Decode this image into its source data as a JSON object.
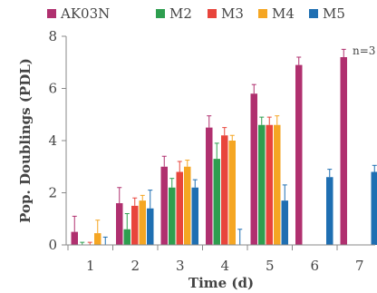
{
  "chart_data": {
    "type": "bar",
    "xlabel": "Time (d)",
    "ylabel": "Pop. Doublings (PDL)",
    "ylim": [
      0,
      8
    ],
    "yticks": [
      "0",
      "2",
      "4",
      "6",
      "8"
    ],
    "categories": [
      "1",
      "2",
      "3",
      "4",
      "5",
      "6",
      "7"
    ],
    "annotation": "n=3",
    "grid": false,
    "legend_position": "top",
    "series": [
      {
        "name": "AK03N",
        "color": "#B0306F",
        "values": [
          0.5,
          1.6,
          3.0,
          4.5,
          5.8,
          6.9,
          7.2
        ],
        "errors": [
          0.6,
          0.6,
          0.4,
          0.45,
          0.35,
          0.3,
          0.3
        ]
      },
      {
        "name": "M2",
        "color": "#2E9E4F",
        "values": [
          0.0,
          0.6,
          2.2,
          3.3,
          4.6,
          null,
          null
        ],
        "errors": [
          0.1,
          0.6,
          0.35,
          0.6,
          0.3,
          null,
          null
        ]
      },
      {
        "name": "M3",
        "color": "#E8453C",
        "values": [
          0.0,
          1.5,
          2.8,
          4.2,
          4.6,
          null,
          null
        ],
        "errors": [
          0.1,
          0.3,
          0.4,
          0.3,
          0.3,
          null,
          null
        ]
      },
      {
        "name": "M4",
        "color": "#F5A623",
        "values": [
          0.45,
          1.7,
          3.0,
          4.0,
          4.6,
          null,
          null
        ],
        "errors": [
          0.5,
          0.2,
          0.25,
          0.2,
          0.35,
          null,
          null
        ]
      },
      {
        "name": "M5",
        "color": "#1F6FB2",
        "values": [
          0.0,
          1.4,
          2.2,
          0.0,
          1.7,
          2.6,
          2.8
        ],
        "errors": [
          0.3,
          0.7,
          0.3,
          0.6,
          0.6,
          0.3,
          0.25
        ]
      }
    ]
  }
}
